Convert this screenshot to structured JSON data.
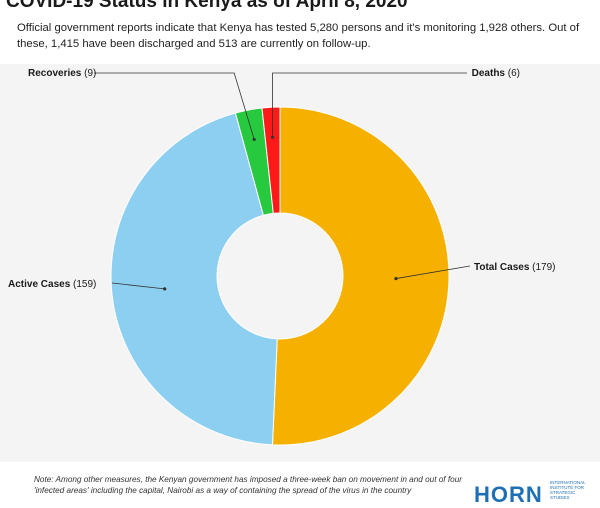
{
  "title": "COVID-19 Status in Kenya as of April 8, 2020",
  "subtitle": "Official government reports indicate that Kenya has tested 5,280 persons and it's monitoring 1,928 others. Out of these, 1,415 have been discharged and 513 are currently on follow-up.",
  "note": "Note: Among other measures, the Kenyan government has imposed a three-week ban on movement in and out of four 'infected areas' including the capital, Nairobi as a way of containing the spread of the virus in the country",
  "logo": {
    "word": "HORN",
    "small": "INTERNATIONAL INSTITUTE FOR STRATEGIC STUDIES"
  },
  "colors": {
    "total": "#f5b000",
    "active": "#8ccff0",
    "recoveries": "#27c93f",
    "deaths": "#ff1a1a"
  },
  "chart_data": {
    "type": "pie",
    "hole": true,
    "start": "12 o'clock, clockwise",
    "slices": [
      {
        "label": "Total Cases",
        "value": 179,
        "color": "#f5b000"
      },
      {
        "label": "Active Cases",
        "value": 159,
        "color": "#8ccff0"
      },
      {
        "label": "Recoveries",
        "value": 9,
        "color": "#27c93f"
      },
      {
        "label": "Deaths",
        "value": 6,
        "color": "#ff1a1a"
      }
    ]
  }
}
